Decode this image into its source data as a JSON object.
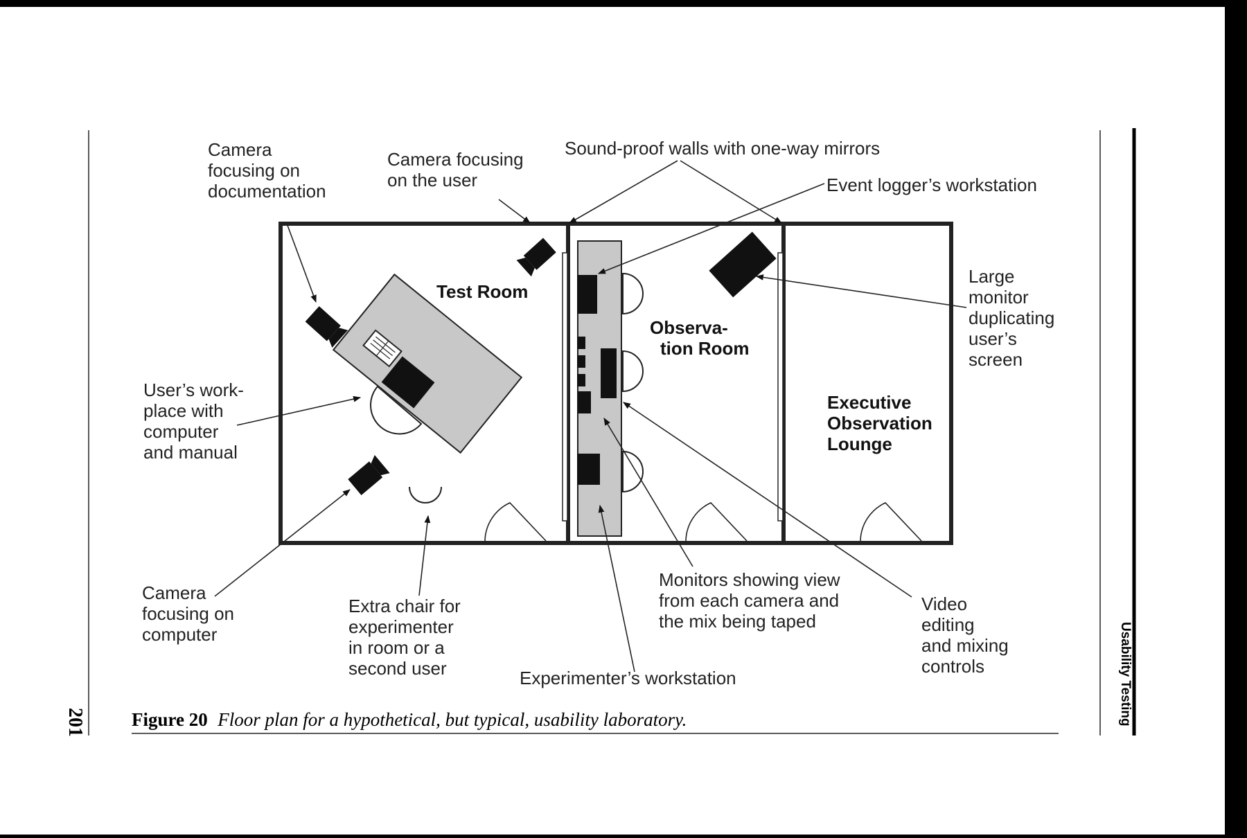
{
  "page_number": "201",
  "running_head": "Usability Testing",
  "caption": {
    "label": "Figure 20",
    "text": "Floor plan for a hypothetical, but typical, usability laboratory."
  },
  "rooms": {
    "test_room": "Test Room",
    "observation_room": [
      "Observa-",
      "tion Room"
    ],
    "executive_lounge": [
      "Executive",
      "Observation",
      "Lounge"
    ]
  },
  "callouts": {
    "camera_documentation": [
      "Camera",
      "focusing on",
      "documentation"
    ],
    "camera_user": [
      "Camera focusing",
      "on the user"
    ],
    "soundproof_walls": "Sound-proof walls with one-way mirrors",
    "event_logger": "Event logger’s workstation",
    "large_monitor": [
      "Large",
      "monitor",
      "duplicating",
      "user’s",
      "screen"
    ],
    "users_workplace": [
      "User’s work-",
      "place with",
      "computer",
      "and manual"
    ],
    "camera_computer": [
      "Camera",
      "focusing on",
      "computer"
    ],
    "extra_chair": [
      "Extra chair for",
      "experimenter",
      "in room or a",
      "second user"
    ],
    "monitors_view": [
      "Monitors showing view",
      "from each camera and",
      "the mix being taped"
    ],
    "video_editing": [
      "Video",
      "editing",
      "and mixing",
      "controls"
    ],
    "experimenter_workstation": "Experimenter’s workstation"
  }
}
